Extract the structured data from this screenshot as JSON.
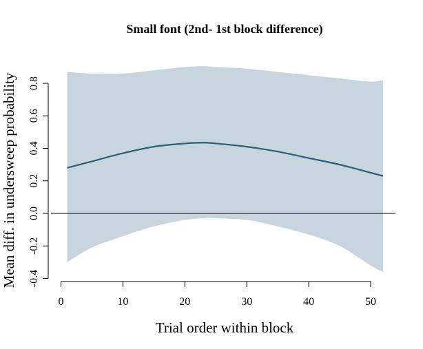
{
  "chart_data": {
    "type": "line",
    "title": "Small font (2nd- 1st block difference)",
    "xlabel": "Trial order within block",
    "ylabel": "Mean diff. in undersweep probability",
    "xlim": [
      1,
      52
    ],
    "ylim": [
      -0.4,
      0.8
    ],
    "x_ticks": [
      0,
      10,
      20,
      30,
      40,
      50
    ],
    "x_tick_labels": [
      "0",
      "10",
      "20",
      "30",
      "40",
      "50"
    ],
    "y_ticks": [
      -0.4,
      -0.2,
      0.0,
      0.2,
      0.4,
      0.6,
      0.8
    ],
    "y_tick_labels": [
      "-0.4",
      "-0.2",
      "0.0",
      "0.2",
      "0.4",
      "0.6",
      "0.8"
    ],
    "reference_line_y": 0.0,
    "grid": false,
    "series": [
      {
        "x": [
          1,
          5,
          10,
          15,
          20,
          23,
          25,
          30,
          35,
          40,
          45,
          50,
          52
        ],
        "values": [
          0.28,
          0.32,
          0.37,
          0.41,
          0.43,
          0.435,
          0.43,
          0.41,
          0.38,
          0.34,
          0.3,
          0.25,
          0.23
        ],
        "ci_upper": [
          0.87,
          0.86,
          0.86,
          0.88,
          0.9,
          0.905,
          0.9,
          0.89,
          0.87,
          0.85,
          0.83,
          0.81,
          0.82
        ],
        "ci_lower": [
          -0.3,
          -0.21,
          -0.14,
          -0.08,
          -0.04,
          -0.03,
          -0.03,
          -0.04,
          -0.08,
          -0.13,
          -0.2,
          -0.32,
          -0.36
        ]
      }
    ],
    "colors": {
      "line": "#2b5d7a",
      "band": "#c7d6de",
      "reference": "#000000",
      "axis": "#000000"
    }
  }
}
